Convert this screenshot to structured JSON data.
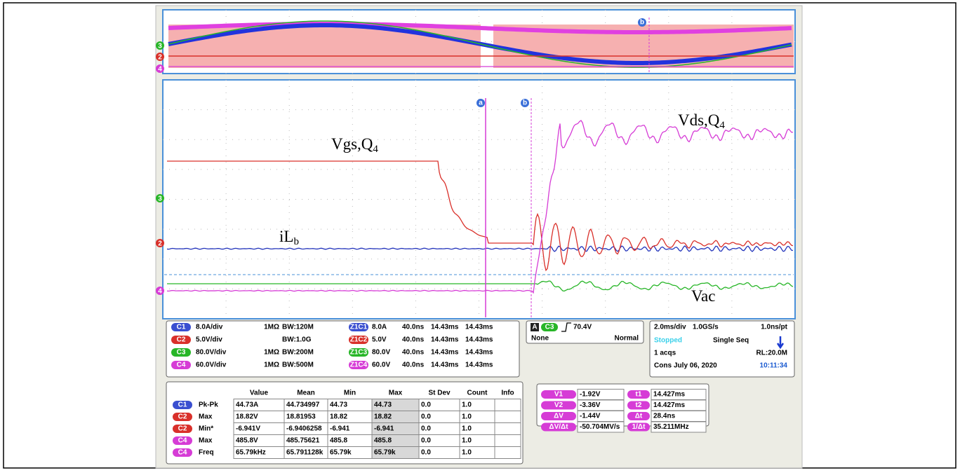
{
  "trace_labels": [
    {
      "text": "Vgs,Q",
      "sub": "4"
    },
    {
      "text": "iL",
      "sub": "b"
    },
    {
      "text": "Vds,Q",
      "sub": "4"
    },
    {
      "text": "Vac"
    }
  ],
  "markers": {
    "overview": [
      "3",
      "2",
      "4"
    ],
    "main": [
      "3",
      "2",
      "4"
    ],
    "cursors": [
      "a",
      "b"
    ],
    "overview_cursor": "b"
  },
  "channels": [
    {
      "badge": "C1",
      "color": "#3a4fd0",
      "scale": "8.0A/div",
      "impedance": "1MΩ",
      "bandwidth": "BW:120M",
      "zoom": "Z1C1",
      "zoom_scale": "8.0A",
      "zoom_time": "40.0ns",
      "pos1": "14.43ms",
      "pos2": "14.43ms"
    },
    {
      "badge": "C2",
      "color": "#d9302a",
      "scale": "5.0V/div",
      "bandwidth": "BW:1.0G",
      "zoom": "Z1C2",
      "zoom_scale": "5.0V",
      "zoom_time": "40.0ns",
      "pos1": "14.43ms",
      "pos2": "14.43ms"
    },
    {
      "badge": "C3",
      "color": "#28b628",
      "scale": "80.0V/div",
      "impedance": "1MΩ",
      "bandwidth": "BW:200M",
      "zoom": "Z1C3",
      "zoom_scale": "80.0V",
      "zoom_time": "40.0ns",
      "pos1": "14.43ms",
      "pos2": "14.43ms"
    },
    {
      "badge": "C4",
      "color": "#d63cd6",
      "scale": "60.0V/div",
      "impedance": "1MΩ",
      "bandwidth": "BW:500M",
      "zoom": "Z1C4",
      "zoom_scale": "60.0V",
      "zoom_time": "40.0ns",
      "pos1": "14.43ms",
      "pos2": "14.43ms"
    }
  ],
  "trigger": {
    "badge": "A",
    "source": "C3",
    "level": "70.4V",
    "coupling": "None",
    "mode": "Normal"
  },
  "timebase": {
    "scale": "2.0ms/div",
    "rate": "1.0GS/s",
    "resolution": "1.0ns/pt",
    "status": "Stopped",
    "acq_mode": "Single Seq",
    "acqs": "1 acqs",
    "record_length": "RL:20.0M",
    "cons": "Cons",
    "date": "July 06, 2020",
    "time": "10:11:34"
  },
  "measurements": {
    "headers": [
      "Value",
      "Mean",
      "Min",
      "Max",
      "St Dev",
      "Count",
      "Info"
    ],
    "rows": [
      {
        "badge": "C1",
        "color": "#3a4fd0",
        "name": "Pk-Pk",
        "cells": [
          "44.73A",
          "44.734997",
          "44.73",
          "44.73",
          "0.0",
          "1.0"
        ]
      },
      {
        "badge": "C2",
        "color": "#d9302a",
        "name": "Max",
        "cells": [
          "18.82V",
          "18.81953",
          "18.82",
          "18.82",
          "0.0",
          "1.0"
        ]
      },
      {
        "badge": "C2",
        "color": "#d9302a",
        "name": "Min*",
        "cells": [
          "-6.941V",
          "-6.9406258",
          "-6.941",
          "-6.941",
          "0.0",
          "1.0"
        ]
      },
      {
        "badge": "C4",
        "color": "#d63cd6",
        "name": "Max",
        "cells": [
          "485.8V",
          "485.75621",
          "485.8",
          "485.8",
          "0.0",
          "1.0"
        ]
      },
      {
        "badge": "C4",
        "color": "#d63cd6",
        "name": "Freq",
        "cells": [
          "65.79kHz",
          "65.791128k",
          "65.79k",
          "65.79k",
          "0.0",
          "1.0"
        ]
      }
    ]
  },
  "cursors": {
    "left": [
      {
        "badge": "V1",
        "value": "-1.92V"
      },
      {
        "badge": "V2",
        "value": "-3.36V"
      },
      {
        "badge": "ΔV",
        "value": "-1.44V"
      },
      {
        "badge": "ΔV/Δt",
        "value": "-50.704MV/s"
      }
    ],
    "right": [
      {
        "badge": "t1",
        "value": "14.427ms"
      },
      {
        "badge": "t2",
        "value": "14.427ms"
      },
      {
        "badge": "Δt",
        "value": "28.4ns"
      },
      {
        "badge": "1/Δt",
        "value": "35.211MHz"
      }
    ]
  }
}
